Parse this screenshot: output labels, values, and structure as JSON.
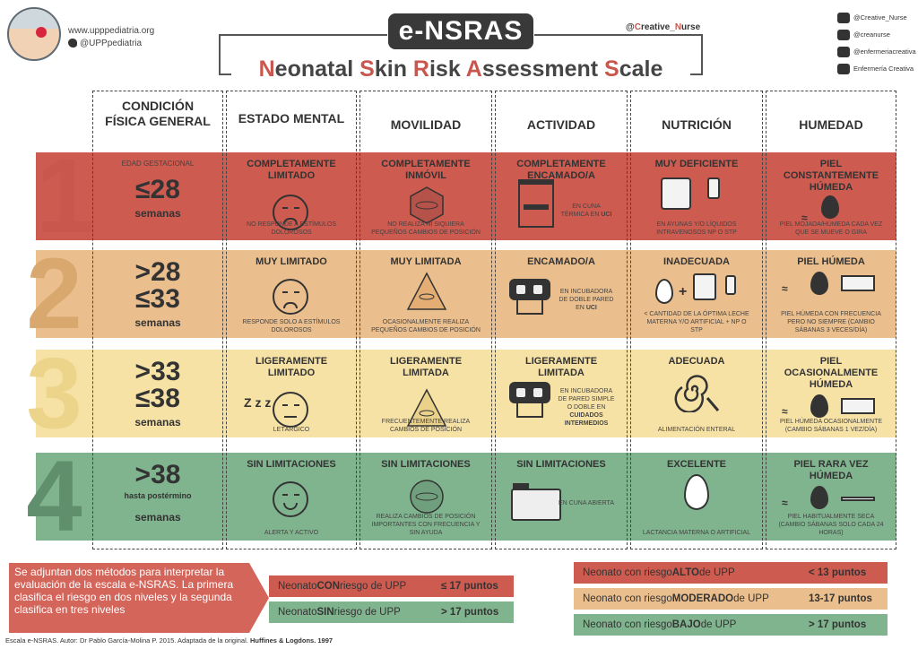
{
  "header": {
    "site": "www.upppediatria.org",
    "twitter": "@UPPpediatria",
    "title": "e-NSRAS",
    "subtitle_parts": [
      {
        "t": "N",
        "red": true
      },
      {
        "t": "eonatal ",
        "red": false
      },
      {
        "t": "S",
        "red": true
      },
      {
        "t": "kin ",
        "red": false
      },
      {
        "t": "R",
        "red": true
      },
      {
        "t": "isk ",
        "red": false
      },
      {
        "t": "A",
        "red": true
      },
      {
        "t": "ssessment ",
        "red": false
      },
      {
        "t": "S",
        "red": true
      },
      {
        "t": "cale",
        "red": false
      }
    ],
    "handle_at": "@",
    "handle_c": "C",
    "handle_rest1": "reative_",
    "handle_n": "N",
    "handle_rest2": "urse",
    "social": [
      "@Creative_Nurse",
      "@creanurse",
      "@enfermeriacreativa",
      "Enfermería Creativa"
    ]
  },
  "columns": [
    "CONDICIÓN FÍSICA GENERAL",
    "ESTADO MENTAL",
    "MOVILIDAD",
    "ACTIVIDAD",
    "NUTRICIÓN",
    "HUMEDAD"
  ],
  "rows": [
    {
      "level": "1",
      "bg": "#cd5b50",
      "digit": "#c9574d",
      "cond_top": "EDAD GESTACIONAL",
      "cond_a": "≤28",
      "cond_b": "",
      "cond_sub": "semanas",
      "mental_t": "COMPLETAMENTE LIMITADO",
      "mental_s": "NO RESPONDE A ESTÍMULOS DOLOROSOS",
      "mov_t": "COMPLETAMENTE INMÓVIL",
      "mov_s": "NO REALIZA NI SIQUIERA PEQUEÑOS CAMBIOS DE POSICIÓN",
      "act_t": "COMPLETAMENTE ENCAMADO/A",
      "act_s": "EN CUNA TÉRMICA EN",
      "act_b": "UCI",
      "nut_t": "MUY DEFICIENTE",
      "nut_s": "EN AYUNAS Y/O LÍQUIDOS INTRAVENOSOS NP O STP",
      "hum_t": "PIEL CONSTANTEMENTE HÚMEDA",
      "hum_s": "PIEL MOJADA/HÚMEDA CADA VEZ QUE SE MUEVE O GIRA"
    },
    {
      "level": "2",
      "bg": "#ebbf8d",
      "digit": "#d9a86f",
      "cond_top": "",
      "cond_a": ">28",
      "cond_b": "≤33",
      "cond_sub": "semanas",
      "mental_t": "MUY LIMITADO",
      "mental_s": "RESPONDE SOLO A ESTÍMULOS DOLOROSOS",
      "mov_t": "MUY LIMITADA",
      "mov_s": "OCASIONALMENTE REALIZA PEQUEÑOS CAMBIOS DE POSICIÓN",
      "act_t": "ENCAMADO/A",
      "act_s": "EN INCUBADORA DE DOBLE PARED EN",
      "act_b": "UCI",
      "nut_t": "INADECUADA",
      "nut_s": "< CANTIDAD DE LA ÓPTIMA LECHE MATERNA Y/O ARTIFICIAL + NP O STP",
      "hum_t": "PIEL HÚMEDA",
      "hum_s": "PIEL HÚMEDA CON FRECUENCIA PERO NO SIEMPRE (CAMBIO SÁBANAS 3 VECES/DÍA)"
    },
    {
      "level": "3",
      "bg": "#f7e2a6",
      "digit": "#ecd48a",
      "cond_top": "",
      "cond_a": ">33",
      "cond_b": "≤38",
      "cond_sub": "semanas",
      "mental_t": "LIGERAMENTE LIMITADO",
      "mental_s": "LETÁRGICO",
      "mov_t": "LIGERAMENTE LIMITADA",
      "mov_s": "FRECUENTEMENTE REALIZA CAMBIOS DE POSICIÓN",
      "act_t": "LIGERAMENTE LIMITADA",
      "act_s": "EN INCUBADORA DE PARED SIMPLE O DOBLE EN",
      "act_b": "CUIDADOS INTERMEDIOS",
      "nut_t": "ADECUADA",
      "nut_s": "ALIMENTACIÓN ENTERAL",
      "hum_t": "PIEL OCASIONALMENTE HÚMEDA",
      "hum_s": "PIEL HÚMEDA OCASIONALMENTE (CAMBIO SÁBANAS 1 VEZ/DÍA)"
    },
    {
      "level": "4",
      "bg": "#80b48e",
      "digit": "#5f8f6c",
      "cond_top": "",
      "cond_a": ">38",
      "cond_b": "hasta postérmino",
      "cond_sub": "semanas",
      "mental_t": "SIN LIMITACIONES",
      "mental_s": "ALERTA Y ACTIVO",
      "mov_t": "SIN LIMITACIONES",
      "mov_s": "REALIZA CAMBIOS DE POSICIÓN IMPORTANTES CON FRECUENCIA Y SIN AYUDA",
      "act_t": "SIN LIMITACIONES",
      "act_s": "EN CUNA ABIERTA",
      "act_b": "",
      "nut_t": "EXCELENTE",
      "nut_s": "LACTANCIA MATERNA O ARTIFICIAL",
      "hum_t": "PIEL RARA VEZ HÚMEDA",
      "hum_s": "PIEL HABITUALMENTE SECA (CAMBIO SÁBANAS SOLO CADA 24 HORAS)"
    }
  ],
  "lethargic_z": "Z z z",
  "note": "Se adjuntan dos métodos para interpretar la evaluación de la escala e-NSRAS. La primera clasifica el riesgo en dos niveles y la segunda clasifica en tres niveles",
  "two_levels": [
    {
      "pre": "Neonato ",
      "bold": "CON",
      "post": " riesgo de UPP",
      "value": "≤ 17 puntos",
      "color": "#cd5b50"
    },
    {
      "pre": "Neonato ",
      "bold": "SIN",
      "post": " riesgo de UPP",
      "value": "> 17 puntos",
      "color": "#80b48e"
    }
  ],
  "three_levels": [
    {
      "pre": "Neonato con riesgo ",
      "bold": "ALTO",
      "post": " de UPP",
      "value": "< 13 puntos",
      "color": "#cd5b50"
    },
    {
      "pre": "Neonato con riesgo ",
      "bold": "MODERADO",
      "post": " de UPP",
      "value": "13-17 puntos",
      "color": "#ebbf8d"
    },
    {
      "pre": "Neonato con riesgo ",
      "bold": "BAJO",
      "post": " de UPP",
      "value": "> 17 puntos",
      "color": "#80b48e"
    }
  ],
  "footer_pre": "Escala e-NSRAS. Autor: Dr Pablo García-Molina P. 2015. Adaptada de la original.",
  "footer_bold": "Huffines & Logdons. 1997"
}
